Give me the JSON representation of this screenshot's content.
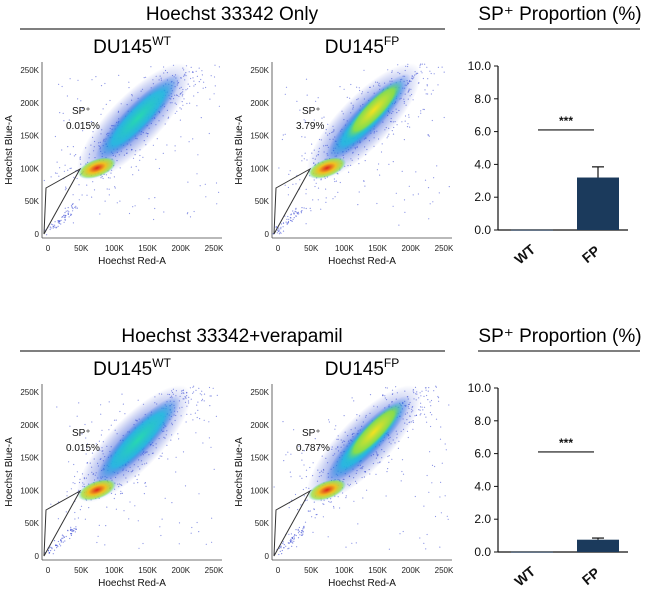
{
  "colors": {
    "bar_fill": "#1b3a5c",
    "density_low": "#1f33c8",
    "density_mid": "#22c8d0",
    "density_high": "#e8e020",
    "density_peak": "#e0261c",
    "gate_line": "#333333"
  },
  "panels": [
    {
      "header": "Hoechst 33342 Only",
      "proportion_title": "SP⁺ Proportion (%)",
      "plots": [
        {
          "cell_base": "DU145",
          "cell_sup": "WT",
          "gate_label": "SP⁺",
          "gate_value": "0.015%",
          "x_label": "Hoechst Red-A",
          "y_label": "Hoechst Blue-A"
        },
        {
          "cell_base": "DU145",
          "cell_sup": "FP",
          "gate_label": "SP⁺",
          "gate_value": "3.79%",
          "x_label": "Hoechst Red-A",
          "y_label": "Hoechst Blue-A"
        }
      ]
    },
    {
      "header": "Hoechst 33342+verapamil",
      "proportion_title": "SP⁺ Proportion (%)",
      "plots": [
        {
          "cell_base": "DU145",
          "cell_sup": "WT",
          "gate_label": "SP⁺",
          "gate_value": "0.015%",
          "x_label": "Hoechst Red-A",
          "y_label": "Hoechst Blue-A"
        },
        {
          "cell_base": "DU145",
          "cell_sup": "FP",
          "gate_label": "SP⁺",
          "gate_value": "0.787%",
          "x_label": "Hoechst Red-A",
          "y_label": "Hoechst Blue-A"
        }
      ]
    }
  ],
  "scatter_axes": {
    "x_ticks": [
      "0",
      "50K",
      "100K",
      "150K",
      "200K",
      "250K"
    ],
    "y_ticks": [
      "0",
      "50K",
      "100K",
      "150K",
      "200K",
      "250K"
    ],
    "xlim": [
      0,
      262144
    ],
    "ylim": [
      0,
      262144
    ]
  },
  "chart_data": [
    {
      "type": "bar",
      "title": "SP⁺ Proportion (%)",
      "categories": [
        "WT",
        "FP"
      ],
      "values": [
        0.015,
        3.2
      ],
      "errors": [
        0,
        0.65
      ],
      "ylim": [
        0,
        10
      ],
      "yticks": [
        "0.0",
        "2.0",
        "4.0",
        "6.0",
        "8.0",
        "10.0"
      ],
      "significance": "***",
      "xlabel": "",
      "ylabel": ""
    },
    {
      "type": "bar",
      "title": "SP⁺ Proportion (%)",
      "categories": [
        "WT",
        "FP"
      ],
      "values": [
        0.015,
        0.75
      ],
      "errors": [
        0,
        0.1
      ],
      "ylim": [
        0,
        10
      ],
      "yticks": [
        "0.0",
        "2.0",
        "4.0",
        "6.0",
        "8.0",
        "10.0"
      ],
      "significance": "***",
      "xlabel": "",
      "ylabel": ""
    }
  ]
}
